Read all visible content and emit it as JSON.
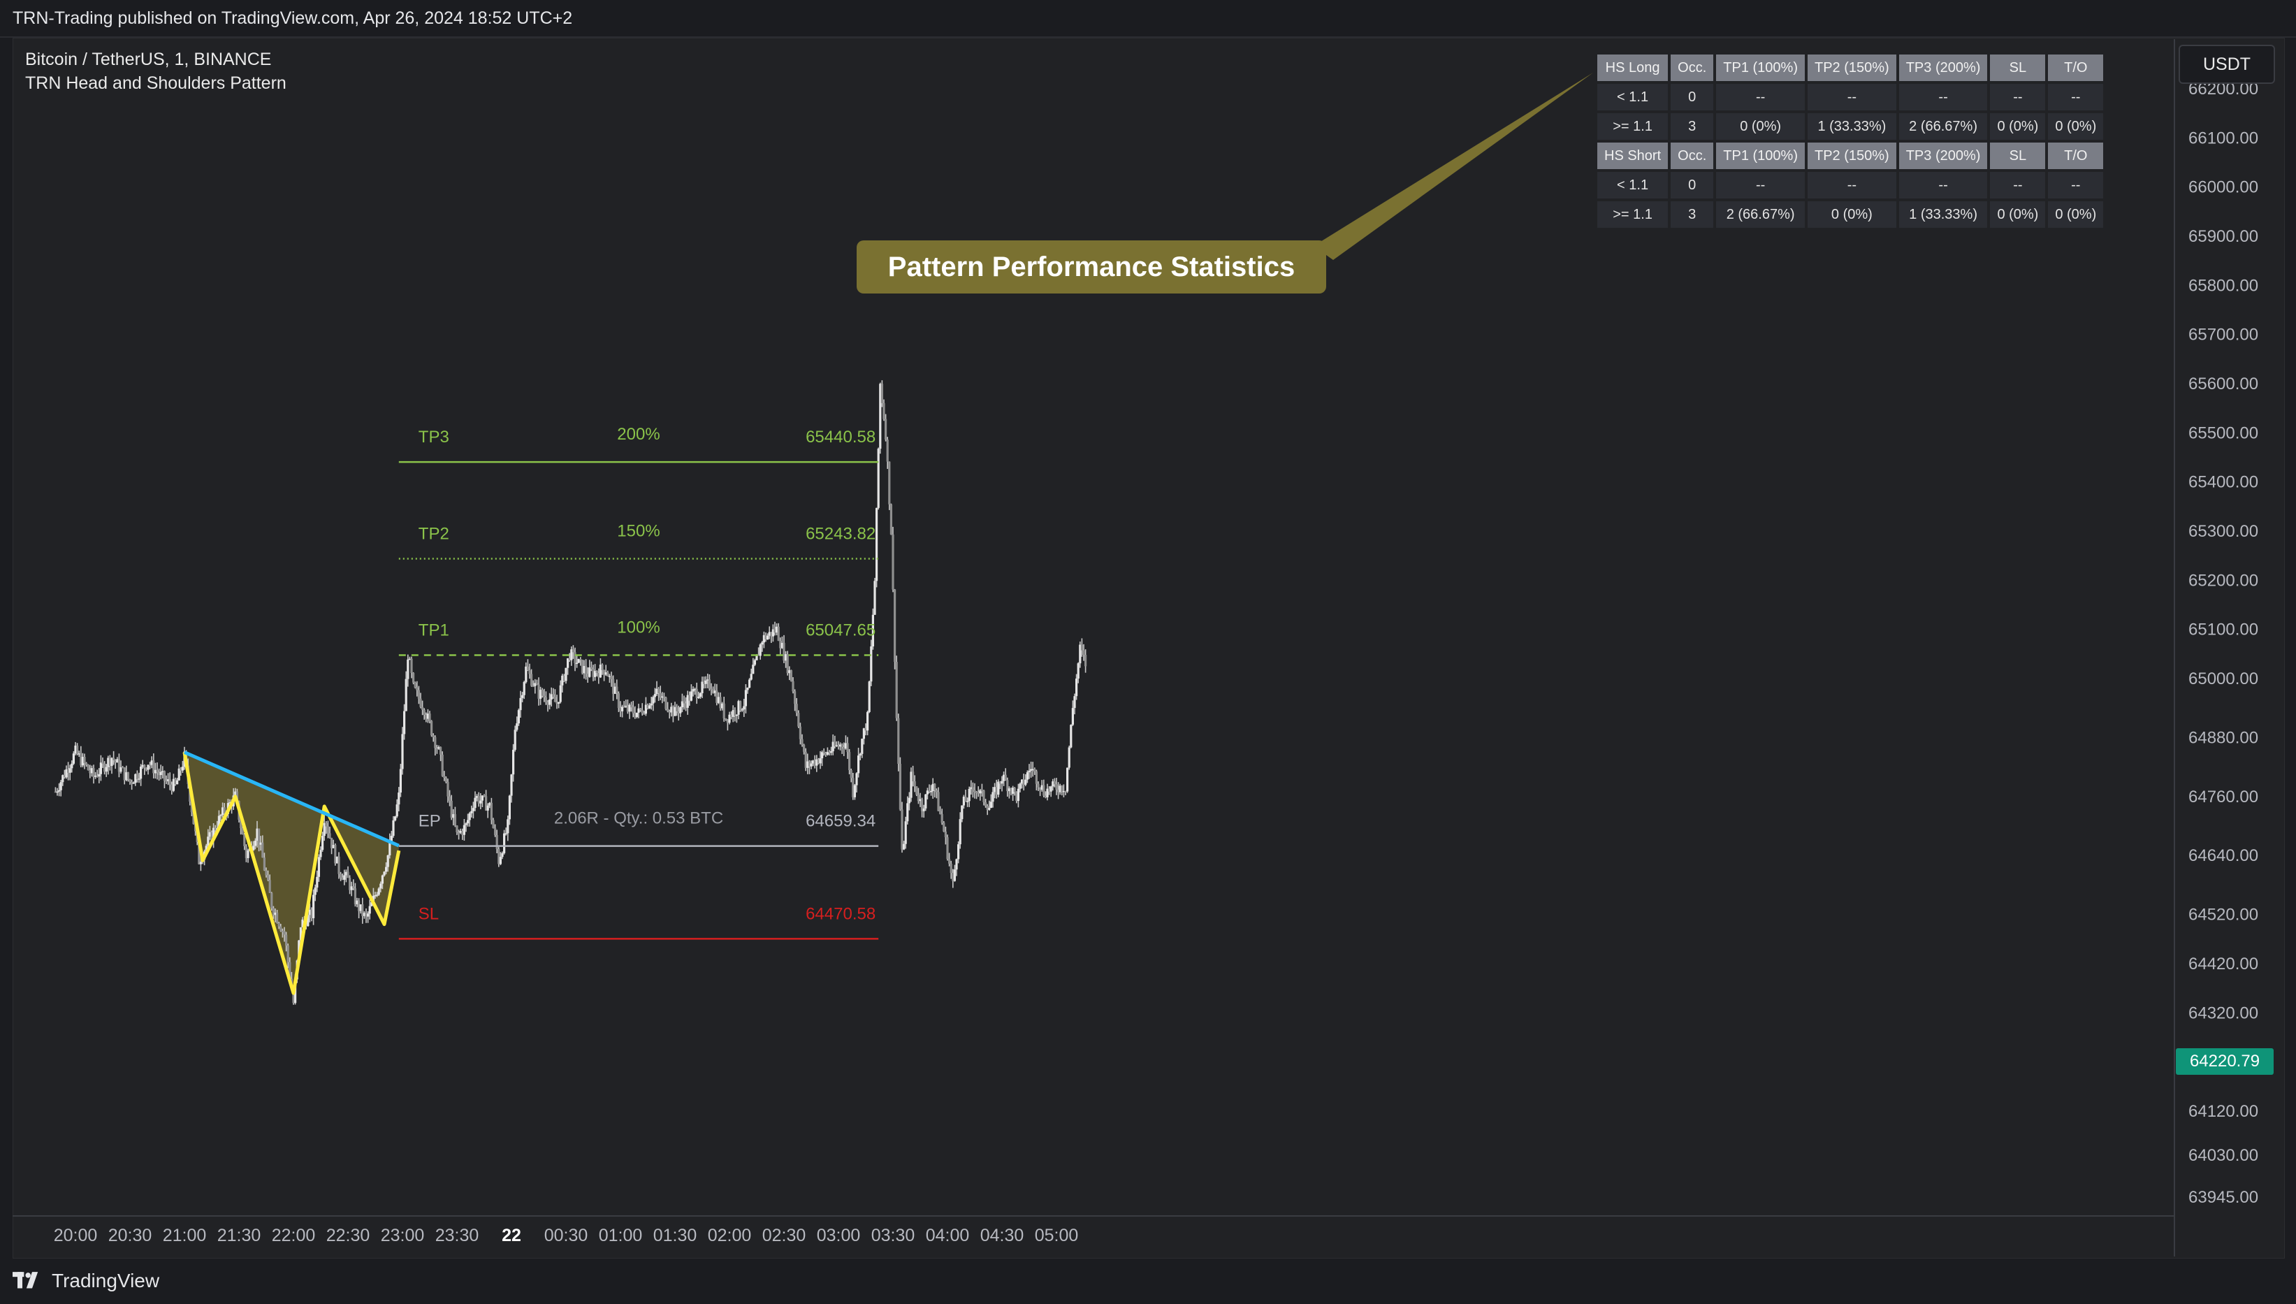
{
  "topbar": {
    "publisher_text": "TRN-Trading published on TradingView.com, Apr 26, 2024 18:52 UTC+2"
  },
  "symbol": {
    "line1": "Bitcoin / TetherUS, 1, BINANCE",
    "line2": "TRN Head and Shoulders Pattern"
  },
  "stats_table": {
    "header_long": [
      "HS Long",
      "Occ.",
      "TP1 (100%)",
      "TP2 (150%)",
      "TP3 (200%)",
      "SL",
      "T/O"
    ],
    "long_rows": [
      [
        "< 1.1",
        "0",
        "--",
        "--",
        "--",
        "--",
        "--"
      ],
      [
        ">= 1.1",
        "3",
        "0 (0%)",
        "1 (33.33%)",
        "2 (66.67%)",
        "0 (0%)",
        "0 (0%)"
      ]
    ],
    "header_short": [
      "HS Short",
      "Occ.",
      "TP1 (100%)",
      "TP2 (150%)",
      "TP3 (200%)",
      "SL",
      "T/O"
    ],
    "short_rows": [
      [
        "< 1.1",
        "0",
        "--",
        "--",
        "--",
        "--",
        "--"
      ],
      [
        ">= 1.1",
        "3",
        "2 (66.67%)",
        "0 (0%)",
        "1 (33.33%)",
        "0 (0%)",
        "0 (0%)"
      ]
    ]
  },
  "callout": {
    "label": "Pattern Performance Statistics"
  },
  "price_axis": {
    "currency": "USDT",
    "current_price": "64220.79",
    "ticks": [
      {
        "label": "66200.00",
        "value": 66200
      },
      {
        "label": "66100.00",
        "value": 66100
      },
      {
        "label": "66000.00",
        "value": 66000
      },
      {
        "label": "65900.00",
        "value": 65900
      },
      {
        "label": "65800.00",
        "value": 65800
      },
      {
        "label": "65700.00",
        "value": 65700
      },
      {
        "label": "65600.00",
        "value": 65600
      },
      {
        "label": "65500.00",
        "value": 65500
      },
      {
        "label": "65400.00",
        "value": 65400
      },
      {
        "label": "65300.00",
        "value": 65300
      },
      {
        "label": "65200.00",
        "value": 65200
      },
      {
        "label": "65100.00",
        "value": 65100
      },
      {
        "label": "65000.00",
        "value": 65000
      },
      {
        "label": "64880.00",
        "value": 64880
      },
      {
        "label": "64760.00",
        "value": 64760
      },
      {
        "label": "64640.00",
        "value": 64640
      },
      {
        "label": "64520.00",
        "value": 64520
      },
      {
        "label": "64420.00",
        "value": 64420
      },
      {
        "label": "64320.00",
        "value": 64320
      },
      {
        "label": "64120.00",
        "value": 64120
      },
      {
        "label": "64030.00",
        "value": 64030
      },
      {
        "label": "63945.00",
        "value": 63945
      }
    ]
  },
  "time_axis": {
    "ticks": [
      {
        "label": "20:00",
        "t": 0,
        "bold": false
      },
      {
        "label": "20:30",
        "t": 30,
        "bold": false
      },
      {
        "label": "21:00",
        "t": 60,
        "bold": false
      },
      {
        "label": "21:30",
        "t": 90,
        "bold": false
      },
      {
        "label": "22:00",
        "t": 120,
        "bold": false
      },
      {
        "label": "22:30",
        "t": 150,
        "bold": false
      },
      {
        "label": "23:00",
        "t": 180,
        "bold": false
      },
      {
        "label": "23:30",
        "t": 210,
        "bold": false
      },
      {
        "label": "22",
        "t": 240,
        "bold": true
      },
      {
        "label": "00:30",
        "t": 270,
        "bold": false
      },
      {
        "label": "01:00",
        "t": 300,
        "bold": false
      },
      {
        "label": "01:30",
        "t": 330,
        "bold": false
      },
      {
        "label": "02:00",
        "t": 360,
        "bold": false
      },
      {
        "label": "02:30",
        "t": 390,
        "bold": false
      },
      {
        "label": "03:00",
        "t": 420,
        "bold": false
      },
      {
        "label": "03:30",
        "t": 450,
        "bold": false
      },
      {
        "label": "04:00",
        "t": 480,
        "bold": false
      },
      {
        "label": "04:30",
        "t": 510,
        "bold": false
      },
      {
        "label": "05:00",
        "t": 540,
        "bold": false
      }
    ]
  },
  "levels": {
    "tp3": {
      "name": "TP3",
      "pct": "200%",
      "value": 65440.58,
      "price": "65440.58"
    },
    "tp2": {
      "name": "TP2",
      "pct": "150%",
      "value": 65243.82,
      "price": "65243.82"
    },
    "tp1": {
      "name": "TP1",
      "pct": "100%",
      "value": 65047.65,
      "price": "65047.65"
    },
    "ep": {
      "name": "EP",
      "note": "2.06R - Qty.: 0.53 BTC",
      "value": 64659.34,
      "price": "64659.34"
    },
    "sl": {
      "name": "SL",
      "value": 64470.58,
      "price": "64470.58"
    }
  },
  "colors": {
    "tp": "#8bc34a",
    "sl": "#d61f1f",
    "ep": "#b2b5be",
    "pattern_outline": "#ffeb3b",
    "neckline": "#29b6f6",
    "pattern_fill": "#6d6630",
    "candle": "#c8c8c8",
    "callout": "#7a7131",
    "price_badge": "#0f9478"
  },
  "chart_data": {
    "type": "candlestick",
    "title": "Bitcoin / TetherUS, 1, BINANCE",
    "indicator": "TRN Head and Shoulders Pattern",
    "timeframe": "1",
    "x_unit": "minutes since 20:00",
    "ylim": [
      63920,
      66260
    ],
    "xlim": [
      -11,
      560
    ],
    "grid": false,
    "close_path": [
      {
        "t": -11,
        "p": 64770
      },
      {
        "t": 0,
        "p": 64850
      },
      {
        "t": 10,
        "p": 64800
      },
      {
        "t": 20,
        "p": 64840
      },
      {
        "t": 30,
        "p": 64790
      },
      {
        "t": 40,
        "p": 64830
      },
      {
        "t": 50,
        "p": 64790
      },
      {
        "t": 55,
        "p": 64780
      },
      {
        "t": 60,
        "p": 64840
      },
      {
        "t": 68,
        "p": 64630
      },
      {
        "t": 80,
        "p": 64720
      },
      {
        "t": 88,
        "p": 64760
      },
      {
        "t": 94,
        "p": 64640
      },
      {
        "t": 100,
        "p": 64690
      },
      {
        "t": 108,
        "p": 64540
      },
      {
        "t": 115,
        "p": 64480
      },
      {
        "t": 120,
        "p": 64340
      },
      {
        "t": 124,
        "p": 64500
      },
      {
        "t": 130,
        "p": 64520
      },
      {
        "t": 137,
        "p": 64720
      },
      {
        "t": 145,
        "p": 64610
      },
      {
        "t": 150,
        "p": 64590
      },
      {
        "t": 155,
        "p": 64540
      },
      {
        "t": 160,
        "p": 64510
      },
      {
        "t": 167,
        "p": 64580
      },
      {
        "t": 172,
        "p": 64640
      },
      {
        "t": 178,
        "p": 64760
      },
      {
        "t": 180,
        "p": 64880
      },
      {
        "t": 183,
        "p": 65050
      },
      {
        "t": 186,
        "p": 64980
      },
      {
        "t": 192,
        "p": 64940
      },
      {
        "t": 200,
        "p": 64850
      },
      {
        "t": 205,
        "p": 64760
      },
      {
        "t": 210,
        "p": 64680
      },
      {
        "t": 215,
        "p": 64700
      },
      {
        "t": 220,
        "p": 64760
      },
      {
        "t": 228,
        "p": 64740
      },
      {
        "t": 233,
        "p": 64630
      },
      {
        "t": 238,
        "p": 64700
      },
      {
        "t": 242,
        "p": 64900
      },
      {
        "t": 248,
        "p": 65020
      },
      {
        "t": 255,
        "p": 64970
      },
      {
        "t": 265,
        "p": 64950
      },
      {
        "t": 272,
        "p": 65050
      },
      {
        "t": 282,
        "p": 65010
      },
      {
        "t": 292,
        "p": 65020
      },
      {
        "t": 300,
        "p": 64940
      },
      {
        "t": 310,
        "p": 64930
      },
      {
        "t": 320,
        "p": 64970
      },
      {
        "t": 330,
        "p": 64930
      },
      {
        "t": 340,
        "p": 64970
      },
      {
        "t": 350,
        "p": 64990
      },
      {
        "t": 358,
        "p": 64920
      },
      {
        "t": 368,
        "p": 64950
      },
      {
        "t": 378,
        "p": 65080
      },
      {
        "t": 386,
        "p": 65100
      },
      {
        "t": 394,
        "p": 65000
      },
      {
        "t": 402,
        "p": 64820
      },
      {
        "t": 410,
        "p": 64840
      },
      {
        "t": 418,
        "p": 64860
      },
      {
        "t": 424,
        "p": 64870
      },
      {
        "t": 428,
        "p": 64770
      },
      {
        "t": 432,
        "p": 64860
      },
      {
        "t": 436,
        "p": 64920
      },
      {
        "t": 440,
        "p": 65200
      },
      {
        "t": 443,
        "p": 65600
      },
      {
        "t": 446,
        "p": 65500
      },
      {
        "t": 449,
        "p": 65300
      },
      {
        "t": 452,
        "p": 64920
      },
      {
        "t": 455,
        "p": 64640
      },
      {
        "t": 460,
        "p": 64800
      },
      {
        "t": 466,
        "p": 64740
      },
      {
        "t": 472,
        "p": 64790
      },
      {
        "t": 478,
        "p": 64690
      },
      {
        "t": 483,
        "p": 64580
      },
      {
        "t": 488,
        "p": 64740
      },
      {
        "t": 495,
        "p": 64780
      },
      {
        "t": 503,
        "p": 64740
      },
      {
        "t": 510,
        "p": 64800
      },
      {
        "t": 518,
        "p": 64760
      },
      {
        "t": 526,
        "p": 64820
      },
      {
        "t": 533,
        "p": 64770
      },
      {
        "t": 540,
        "p": 64780
      },
      {
        "t": 545,
        "p": 64780
      },
      {
        "t": 549,
        "p": 64940
      },
      {
        "t": 553,
        "p": 65060
      },
      {
        "t": 556,
        "p": 65030
      }
    ],
    "pattern": {
      "outline": [
        {
          "t": 60,
          "p": 64850
        },
        {
          "t": 70,
          "p": 64630
        },
        {
          "t": 88,
          "p": 64760
        },
        {
          "t": 120,
          "p": 64360
        },
        {
          "t": 137,
          "p": 64740
        },
        {
          "t": 170,
          "p": 64500
        },
        {
          "t": 178,
          "p": 64650
        }
      ],
      "neckline": [
        {
          "t": 60,
          "p": 64850
        },
        {
          "t": 178,
          "p": 64660
        }
      ]
    },
    "position": {
      "t_start": 178,
      "t_end": 442
    }
  }
}
